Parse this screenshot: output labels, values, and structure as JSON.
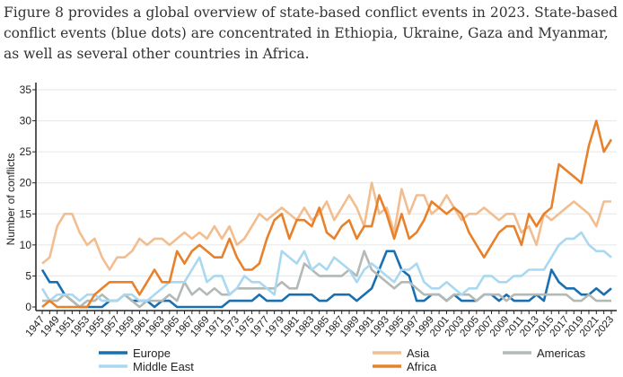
{
  "intro_text": "Figure 8 provides a global overview of state-based conflict events in 2023. State-based conflict events (blue dots) are concentrated in Ethiopia, Ukraine, Gaza and Myanmar, as well as several other countries in Africa.",
  "chart_data": {
    "type": "line",
    "title": "",
    "xlabel": "",
    "ylabel": "Number of conflicts",
    "ylim": [
      0,
      35
    ],
    "yticks": [
      0,
      5,
      10,
      15,
      20,
      25,
      30,
      35
    ],
    "xlim": [
      1947,
      2023
    ],
    "grid": true,
    "legend_placement": "bottom",
    "x_start": 1947,
    "series": [
      {
        "name": "Europe",
        "color": "#1a6fb0",
        "values": [
          6,
          4,
          4,
          2,
          1,
          0,
          0,
          0,
          0,
          1,
          1,
          2,
          1,
          1,
          1,
          0,
          1,
          1,
          0,
          0,
          0,
          0,
          0,
          0,
          0,
          1,
          1,
          1,
          1,
          2,
          1,
          1,
          1,
          2,
          2,
          2,
          2,
          1,
          1,
          2,
          2,
          2,
          1,
          2,
          3,
          6,
          9,
          9,
          6,
          5,
          1,
          1,
          2,
          2,
          1,
          2,
          1,
          1,
          1,
          2,
          2,
          1,
          2,
          1,
          1,
          1,
          2,
          1,
          6,
          4,
          3,
          3,
          2,
          2,
          3,
          2,
          3
        ]
      },
      {
        "name": "Asia",
        "color": "#f2bd8f",
        "values": [
          7,
          8,
          13,
          15,
          15,
          12,
          10,
          11,
          8,
          6,
          8,
          8,
          9,
          11,
          10,
          11,
          11,
          10,
          11,
          12,
          11,
          12,
          11,
          13,
          11,
          13,
          10,
          11,
          13,
          15,
          14,
          15,
          16,
          15,
          14,
          16,
          14,
          15,
          17,
          14,
          16,
          18,
          16,
          13,
          20,
          15,
          16,
          12,
          19,
          15,
          18,
          18,
          15,
          16,
          18,
          16,
          14,
          15,
          15,
          16,
          15,
          14,
          15,
          15,
          12,
          13,
          10,
          15,
          14,
          15,
          16,
          17,
          16,
          15,
          13,
          17,
          17
        ]
      },
      {
        "name": "Americas",
        "color": "#b3b9b5",
        "values": [
          1,
          1,
          1,
          2,
          1,
          0,
          1,
          1,
          2,
          1,
          1,
          2,
          1,
          0,
          1,
          1,
          1,
          2,
          1,
          4,
          2,
          3,
          2,
          3,
          2,
          2,
          3,
          3,
          3,
          3,
          3,
          3,
          4,
          3,
          3,
          7,
          6,
          5,
          5,
          5,
          5,
          6,
          5,
          9,
          6,
          5,
          4,
          3,
          4,
          4,
          3,
          2,
          2,
          2,
          1,
          2,
          2,
          2,
          1,
          2,
          2,
          2,
          1,
          2,
          2,
          2,
          2,
          2,
          2,
          2,
          2,
          1,
          1,
          2,
          1,
          1,
          1
        ]
      },
      {
        "name": "Middle East",
        "color": "#a9d8f0",
        "values": [
          3,
          1,
          2,
          2,
          2,
          1,
          2,
          2,
          1,
          1,
          1,
          2,
          2,
          1,
          1,
          2,
          3,
          4,
          4,
          4,
          6,
          8,
          4,
          5,
          5,
          2,
          3,
          5,
          4,
          4,
          3,
          2,
          9,
          8,
          7,
          9,
          6,
          7,
          6,
          8,
          7,
          6,
          4,
          6,
          7,
          6,
          5,
          4,
          6,
          6,
          7,
          4,
          3,
          3,
          4,
          3,
          2,
          3,
          3,
          5,
          5,
          4,
          4,
          5,
          5,
          6,
          6,
          6,
          8,
          10,
          11,
          11,
          12,
          10,
          9,
          9,
          8
        ]
      },
      {
        "name": "Africa",
        "color": "#e8812b",
        "values": [
          0,
          1,
          0,
          0,
          0,
          0,
          0,
          2,
          3,
          4,
          4,
          4,
          4,
          2,
          4,
          6,
          4,
          4,
          9,
          7,
          9,
          10,
          9,
          8,
          8,
          11,
          8,
          6,
          6,
          7,
          11,
          14,
          15,
          11,
          14,
          14,
          13,
          16,
          12,
          11,
          13,
          14,
          11,
          13,
          13,
          18,
          15,
          11,
          15,
          11,
          12,
          14,
          17,
          16,
          15,
          16,
          15,
          12,
          10,
          8,
          10,
          12,
          13,
          13,
          10,
          15,
          13,
          15,
          16,
          23,
          22,
          21,
          20,
          26,
          30,
          25,
          27
        ]
      }
    ]
  }
}
